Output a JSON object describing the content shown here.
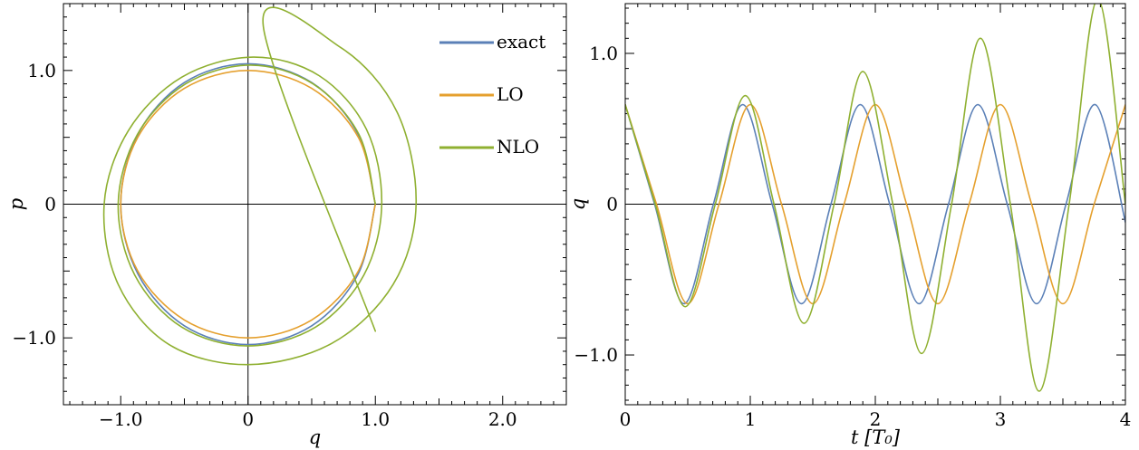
{
  "chart_data": [
    {
      "type": "line",
      "xlabel": "q",
      "ylabel": "p",
      "xlim": [
        -1.45,
        2.5
      ],
      "ylim": [
        -1.5,
        1.5
      ],
      "xticks": [
        -1.0,
        0,
        1.0,
        2.0
      ],
      "xtick_labels": [
        "−1.0",
        "0",
        "1.0",
        "2.0"
      ],
      "yticks": [
        -1.0,
        0,
        1.0
      ],
      "ytick_labels": [
        "−1.0",
        "0",
        "1.0"
      ],
      "grid": false,
      "legend_position": "top-right",
      "series": [
        {
          "name": "exact",
          "color": "#5b80b7",
          "x": [
            1.0,
            0.8633,
            0.5006,
            0.0,
            -0.5006,
            -0.8633,
            -1.0,
            -0.8633,
            -0.5006,
            0.0,
            0.5006,
            0.8633,
            1.0
          ],
          "y": [
            0.0,
            0.525,
            0.9094,
            1.05,
            0.9094,
            0.525,
            0.0,
            -0.525,
            -0.9094,
            -1.05,
            -0.9094,
            -0.525,
            0.0
          ]
        },
        {
          "name": "LO",
          "color": "#e5a02e",
          "x": [
            1.0,
            0.866,
            0.5,
            0.0,
            -0.5,
            -0.866,
            -1.0,
            -0.866,
            -0.5,
            0.0,
            0.5,
            0.866,
            1.0
          ],
          "y": [
            0.0,
            0.5,
            0.866,
            1.0,
            0.866,
            0.5,
            0.0,
            -0.5,
            -0.866,
            -1.0,
            -0.866,
            -0.5,
            0.0
          ]
        },
        {
          "name": "NLO",
          "color": "#8fb031",
          "x": [
            1.0,
            0.872,
            0.51,
            0.02,
            -0.49,
            -0.87,
            -1.02,
            -0.89,
            -0.52,
            0.0,
            0.53,
            0.91,
            1.05,
            0.93,
            0.56,
            0.04,
            -0.52,
            -0.94,
            -1.13,
            -1.02,
            -0.62,
            0.0,
            0.66,
            1.14,
            1.32,
            1.17,
            0.73,
            0.12,
            1.0
          ],
          "y": [
            0.0,
            0.52,
            0.9,
            1.04,
            0.9,
            0.52,
            0.0,
            -0.53,
            -0.92,
            -1.06,
            -0.92,
            -0.53,
            0.0,
            0.56,
            0.96,
            1.1,
            0.95,
            0.55,
            0.0,
            -0.6,
            -1.05,
            -1.2,
            -1.04,
            -0.6,
            0.0,
            0.69,
            1.17,
            1.33,
            -0.95
          ]
        }
      ]
    },
    {
      "type": "line",
      "xlabel": "t [T₀]",
      "ylabel": "q",
      "xlim": [
        0,
        4
      ],
      "ylim": [
        -1.33,
        1.33
      ],
      "xticks": [
        0,
        1,
        2,
        3,
        4
      ],
      "xtick_labels": [
        "0",
        "1",
        "2",
        "3",
        "4"
      ],
      "yticks": [
        -1.0,
        0,
        1.0
      ],
      "ytick_labels": [
        "−1.0",
        "0",
        "1.0"
      ],
      "grid": false,
      "series": [
        {
          "color": "#5b80b7",
          "x": [
            0,
            0.235,
            0.47,
            0.705,
            0.94,
            1.175,
            1.41,
            1.645,
            1.88,
            2.115,
            2.35,
            2.585,
            2.82,
            3.055,
            3.29,
            3.525,
            3.76,
            4.0
          ],
          "y": [
            0.66,
            0.0,
            -0.66,
            0.0,
            0.66,
            0.0,
            -0.66,
            0.0,
            0.66,
            0.0,
            -0.66,
            0.0,
            0.66,
            0.0,
            -0.66,
            0.0,
            0.66,
            -0.12
          ]
        },
        {
          "color": "#e5a02e",
          "x": [
            0,
            0.25,
            0.5,
            0.75,
            1.0,
            1.25,
            1.5,
            1.75,
            2.0,
            2.25,
            2.5,
            2.75,
            3.0,
            3.25,
            3.5,
            3.75,
            4.0
          ],
          "y": [
            0.66,
            0.0,
            -0.66,
            0.0,
            0.66,
            0.0,
            -0.66,
            0.0,
            0.66,
            0.0,
            -0.66,
            0.0,
            0.66,
            0.0,
            -0.66,
            0.0,
            0.66
          ]
        },
        {
          "color": "#8fb031",
          "x": [
            0,
            0.24,
            0.48,
            0.72,
            0.96,
            1.19,
            1.43,
            1.67,
            1.9,
            2.14,
            2.37,
            2.61,
            2.84,
            3.08,
            3.31,
            3.55,
            3.78,
            4.0
          ],
          "y": [
            0.66,
            0.0,
            -0.68,
            0.0,
            0.72,
            0.0,
            -0.79,
            0.0,
            0.88,
            0.0,
            -0.99,
            0.0,
            1.1,
            0.0,
            -1.24,
            0.0,
            1.36,
            0.0
          ]
        }
      ]
    }
  ]
}
